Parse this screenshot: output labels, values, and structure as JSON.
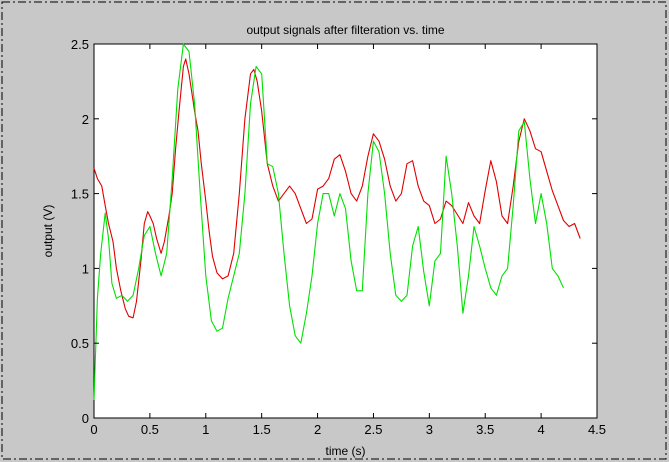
{
  "colors": {
    "figure_bg": "#c8c8c8",
    "axes_bg": "#ffffff",
    "red": "#e00000",
    "green": "#00e000"
  },
  "chart_data": {
    "type": "line",
    "title": "output signals after filteration vs. time",
    "xlabel": "time (s)",
    "ylabel": "output (V)",
    "xlim": [
      0,
      4.5
    ],
    "ylim": [
      0,
      2.5
    ],
    "xticks": [
      "0",
      "0.5",
      "1",
      "1.5",
      "2",
      "2.5",
      "3",
      "3.5",
      "4",
      "4.5"
    ],
    "yticks": [
      "0",
      "0.5",
      "1",
      "1.5",
      "2",
      "2.5"
    ],
    "grid": false,
    "series": [
      {
        "color": "#e00000",
        "x": [
          0,
          0.03,
          0.07,
          0.1,
          0.13,
          0.17,
          0.2,
          0.24,
          0.28,
          0.31,
          0.35,
          0.38,
          0.42,
          0.45,
          0.48,
          0.5,
          0.53,
          0.56,
          0.6,
          0.63,
          0.67,
          0.7,
          0.73,
          0.76,
          0.78,
          0.8,
          0.82,
          0.85,
          0.88,
          0.9,
          0.93,
          0.96,
          1.0,
          1.03,
          1.06,
          1.1,
          1.15,
          1.2,
          1.25,
          1.3,
          1.35,
          1.4,
          1.43,
          1.46,
          1.5,
          1.55,
          1.6,
          1.65,
          1.7,
          1.75,
          1.8,
          1.85,
          1.9,
          1.95,
          2.0,
          2.05,
          2.1,
          2.15,
          2.2,
          2.25,
          2.3,
          2.35,
          2.4,
          2.45,
          2.5,
          2.55,
          2.6,
          2.65,
          2.7,
          2.75,
          2.8,
          2.85,
          2.9,
          2.95,
          3.0,
          3.05,
          3.1,
          3.15,
          3.2,
          3.25,
          3.3,
          3.35,
          3.4,
          3.45,
          3.5,
          3.55,
          3.6,
          3.65,
          3.7,
          3.75,
          3.8,
          3.85,
          3.9,
          3.95,
          4.0,
          4.05,
          4.1,
          4.15,
          4.2,
          4.25,
          4.3,
          4.35
        ],
        "y": [
          1.67,
          1.6,
          1.55,
          1.42,
          1.3,
          1.18,
          1.0,
          0.85,
          0.73,
          0.68,
          0.67,
          0.78,
          1.05,
          1.3,
          1.38,
          1.35,
          1.3,
          1.2,
          1.1,
          1.18,
          1.35,
          1.5,
          1.8,
          2.05,
          2.2,
          2.35,
          2.4,
          2.3,
          2.15,
          2.05,
          1.92,
          1.7,
          1.45,
          1.25,
          1.08,
          0.97,
          0.93,
          0.95,
          1.1,
          1.5,
          2.0,
          2.3,
          2.33,
          2.25,
          2.05,
          1.7,
          1.55,
          1.45,
          1.5,
          1.55,
          1.5,
          1.4,
          1.3,
          1.33,
          1.53,
          1.55,
          1.6,
          1.73,
          1.76,
          1.65,
          1.5,
          1.45,
          1.55,
          1.75,
          1.9,
          1.85,
          1.73,
          1.55,
          1.45,
          1.5,
          1.7,
          1.72,
          1.55,
          1.45,
          1.42,
          1.3,
          1.33,
          1.45,
          1.42,
          1.36,
          1.3,
          1.44,
          1.35,
          1.3,
          1.52,
          1.72,
          1.58,
          1.35,
          1.3,
          1.55,
          1.85,
          2.0,
          1.92,
          1.8,
          1.78,
          1.65,
          1.52,
          1.42,
          1.32,
          1.28,
          1.3,
          1.2
        ]
      },
      {
        "color": "#00e000",
        "x": [
          0,
          0.03,
          0.06,
          0.1,
          0.13,
          0.16,
          0.2,
          0.25,
          0.3,
          0.35,
          0.4,
          0.45,
          0.5,
          0.55,
          0.6,
          0.65,
          0.7,
          0.75,
          0.8,
          0.85,
          0.9,
          0.95,
          1.0,
          1.05,
          1.1,
          1.15,
          1.2,
          1.25,
          1.3,
          1.35,
          1.4,
          1.45,
          1.5,
          1.55,
          1.6,
          1.65,
          1.7,
          1.75,
          1.8,
          1.85,
          1.9,
          1.95,
          2.0,
          2.05,
          2.1,
          2.15,
          2.2,
          2.25,
          2.3,
          2.35,
          2.4,
          2.45,
          2.5,
          2.55,
          2.6,
          2.65,
          2.7,
          2.75,
          2.8,
          2.85,
          2.9,
          2.95,
          3.0,
          3.05,
          3.1,
          3.15,
          3.2,
          3.25,
          3.3,
          3.35,
          3.4,
          3.45,
          3.5,
          3.55,
          3.6,
          3.65,
          3.7,
          3.75,
          3.8,
          3.85,
          3.9,
          3.95,
          4.0,
          4.05,
          4.1,
          4.15,
          4.2
        ],
        "y": [
          0.12,
          0.8,
          1.1,
          1.37,
          1.2,
          0.9,
          0.8,
          0.82,
          0.78,
          0.82,
          1.0,
          1.22,
          1.28,
          1.1,
          0.95,
          1.1,
          1.6,
          2.2,
          2.5,
          2.45,
          2.1,
          1.5,
          0.95,
          0.65,
          0.58,
          0.6,
          0.8,
          0.95,
          1.1,
          1.5,
          2.1,
          2.35,
          2.3,
          1.7,
          1.68,
          1.5,
          1.1,
          0.75,
          0.55,
          0.5,
          0.7,
          0.95,
          1.3,
          1.5,
          1.5,
          1.35,
          1.5,
          1.4,
          1.05,
          0.85,
          0.85,
          1.5,
          1.85,
          1.78,
          1.5,
          1.1,
          0.82,
          0.78,
          0.82,
          1.15,
          1.28,
          0.98,
          0.75,
          1.05,
          1.1,
          1.75,
          1.5,
          1.15,
          0.7,
          0.95,
          1.28,
          1.15,
          1.0,
          0.87,
          0.82,
          0.95,
          1.0,
          1.42,
          1.92,
          1.98,
          1.6,
          1.3,
          1.5,
          1.3,
          1.0,
          0.95,
          0.87
        ]
      }
    ]
  }
}
